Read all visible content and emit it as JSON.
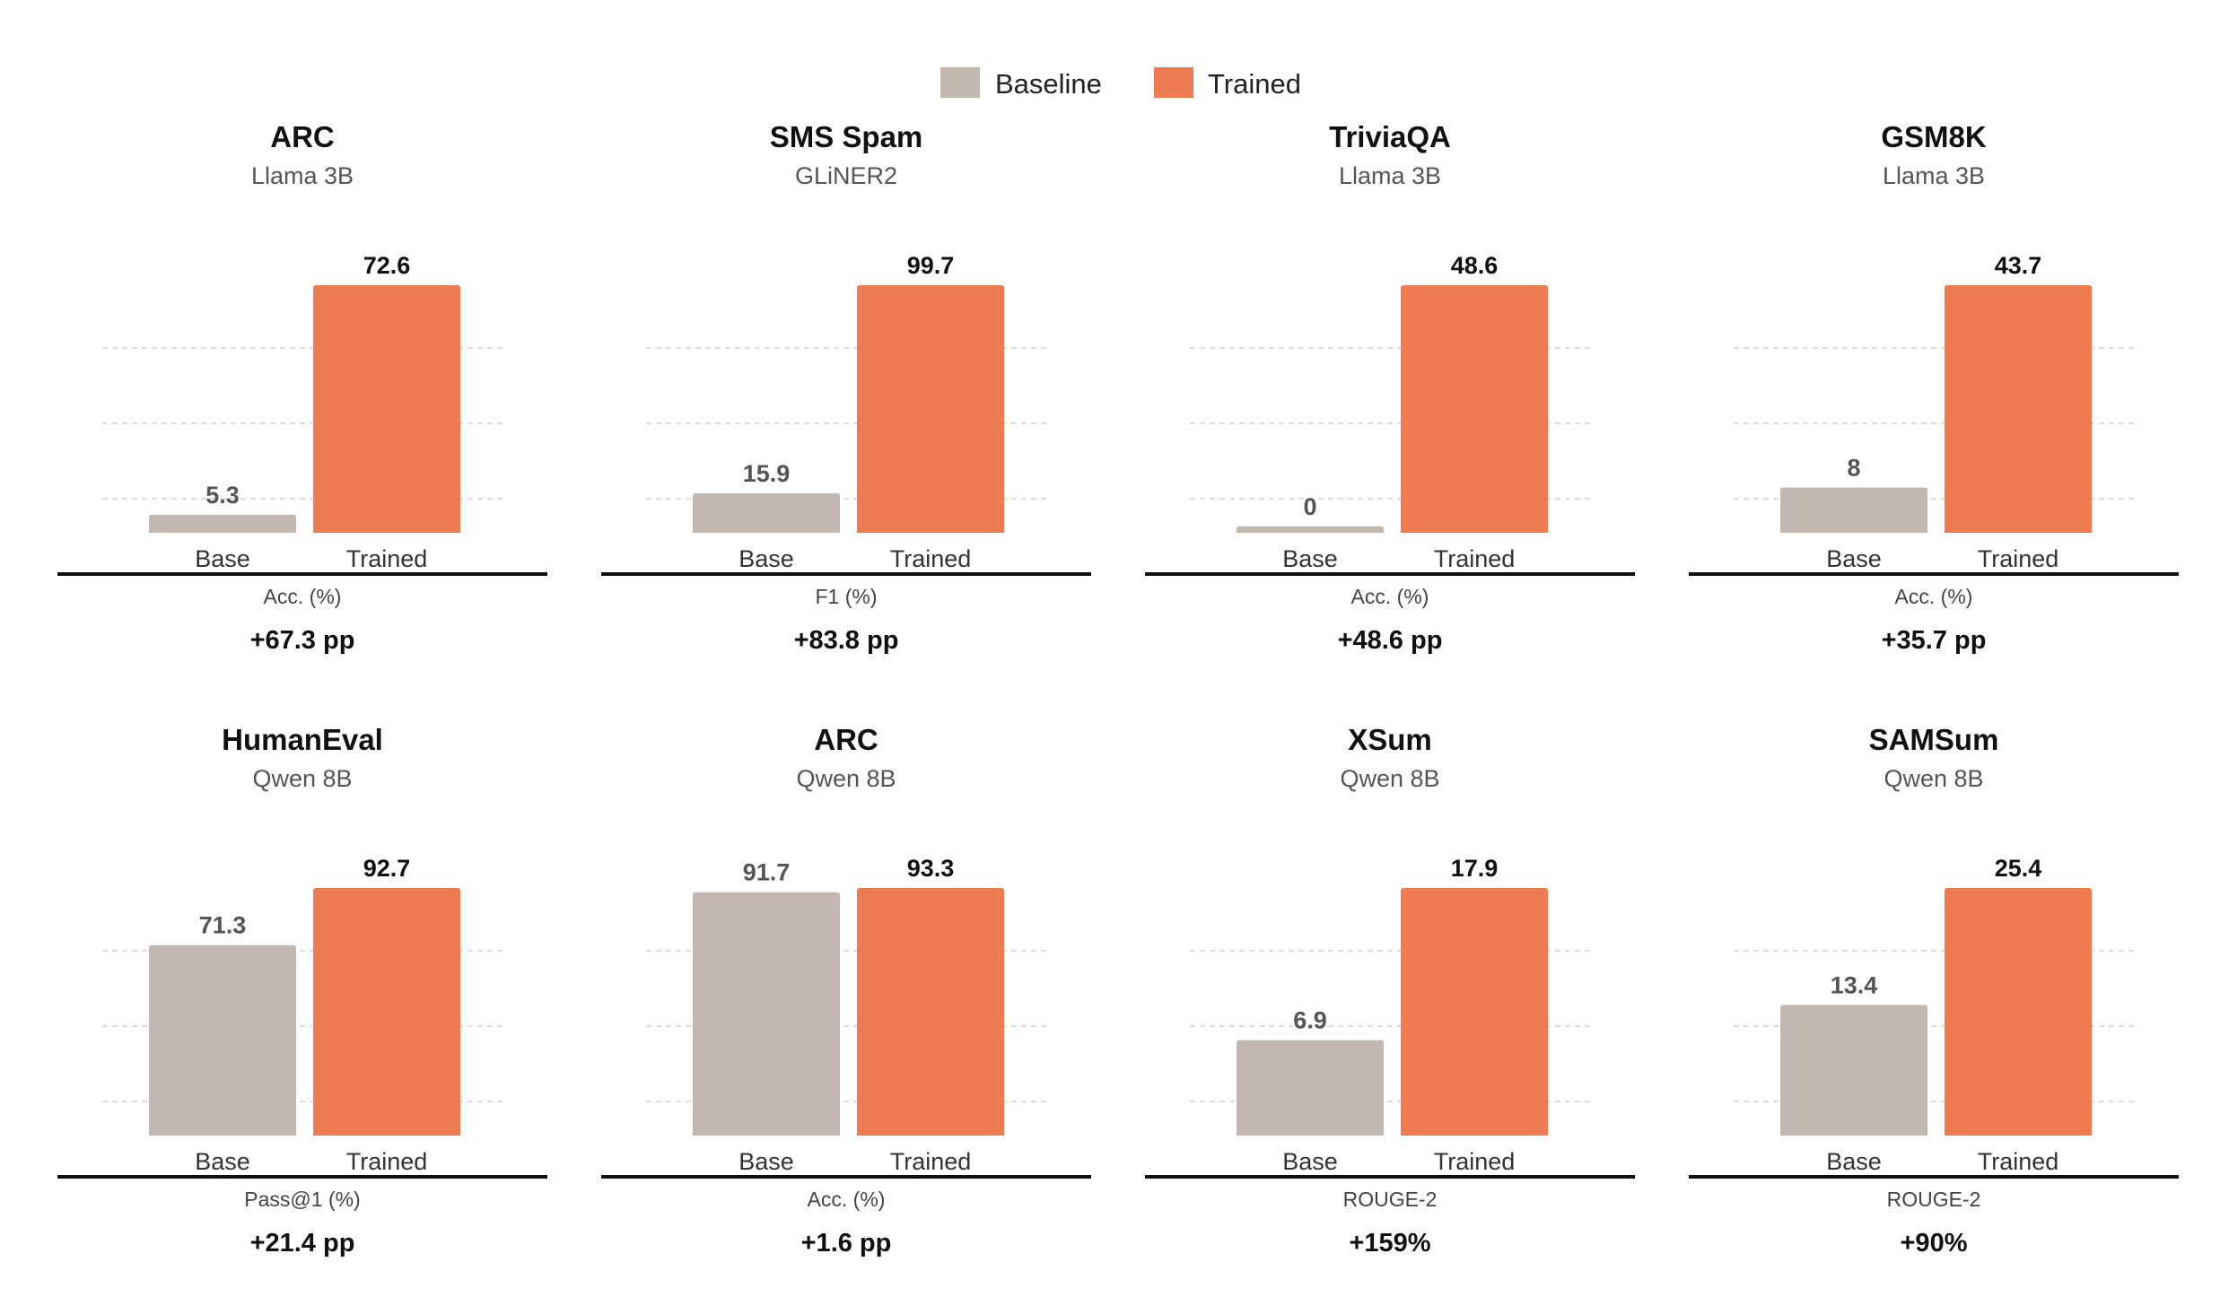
{
  "colors": {
    "baseline": "#c2b8b1",
    "trained": "#ee7b52",
    "grid": "#dddddd",
    "axis": "#111111"
  },
  "legend": {
    "baseline_label": "Baseline",
    "trained_label": "Trained"
  },
  "chart_data": [
    {
      "type": "bar",
      "title": "ARC",
      "subtitle": "Llama 3B",
      "categories": [
        "Base",
        "Trained"
      ],
      "values": [
        5.3,
        72.6
      ],
      "ylabel": "Acc. (%)",
      "delta": "+67.3 pp"
    },
    {
      "type": "bar",
      "title": "SMS Spam",
      "subtitle": "GLiNER2",
      "categories": [
        "Base",
        "Trained"
      ],
      "values": [
        15.9,
        99.7
      ],
      "ylabel": "F1 (%)",
      "delta": "+83.8 pp"
    },
    {
      "type": "bar",
      "title": "TriviaQA",
      "subtitle": "Llama 3B",
      "categories": [
        "Base",
        "Trained"
      ],
      "values": [
        0,
        48.6
      ],
      "ylabel": "Acc. (%)",
      "delta": "+48.6 pp"
    },
    {
      "type": "bar",
      "title": "GSM8K",
      "subtitle": "Llama 3B",
      "categories": [
        "Base",
        "Trained"
      ],
      "values": [
        8,
        43.7
      ],
      "ylabel": "Acc. (%)",
      "delta": "+35.7 pp"
    },
    {
      "type": "bar",
      "title": "HumanEval",
      "subtitle": "Qwen 8B",
      "categories": [
        "Base",
        "Trained"
      ],
      "values": [
        71.3,
        92.7
      ],
      "ylabel": "Pass@1 (%)",
      "delta": "+21.4 pp"
    },
    {
      "type": "bar",
      "title": "ARC",
      "subtitle": "Qwen 8B",
      "categories": [
        "Base",
        "Trained"
      ],
      "values": [
        91.7,
        93.3
      ],
      "ylabel": "Acc. (%)",
      "delta": "+1.6 pp"
    },
    {
      "type": "bar",
      "title": "XSum",
      "subtitle": "Qwen 8B",
      "categories": [
        "Base",
        "Trained"
      ],
      "values": [
        6.9,
        17.9
      ],
      "ylabel": "ROUGE-2",
      "delta": "+159%"
    },
    {
      "type": "bar",
      "title": "SAMSum",
      "subtitle": "Qwen 8B",
      "categories": [
        "Base",
        "Trained"
      ],
      "values": [
        13.4,
        25.4
      ],
      "ylabel": "ROUGE-2",
      "delta": "+90%"
    }
  ]
}
